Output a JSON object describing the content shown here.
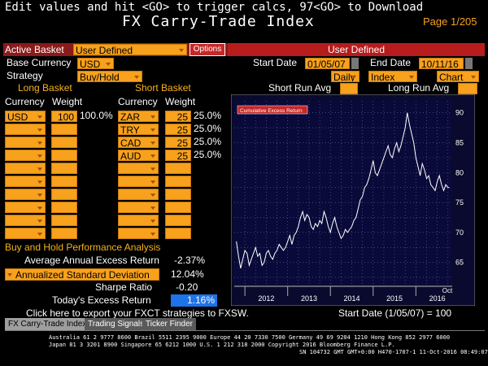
{
  "header": {
    "instruction": "Edit values and hit <GO> to trigger calcs, 97<GO> to Download",
    "title": "FX Carry-Trade Index",
    "page": "Page 1/205"
  },
  "basket_bar": {
    "active_label": "Active Basket",
    "active_value": "User Defined",
    "options_label": "Options",
    "right_label": "User Defined"
  },
  "settings": {
    "base_currency_label": "Base Currency",
    "base_currency_value": "USD",
    "strategy_label": "Strategy",
    "strategy_value": "Buy/Hold",
    "start_date_label": "Start Date",
    "start_date_value": "01/05/07",
    "end_date_label": "End Date",
    "end_date_value": "10/11/16",
    "frequency_value": "Daily",
    "view_value": "Index",
    "display_value": "Chart",
    "short_run_avg_label": "Short Run Avg",
    "long_run_avg_label": "Long Run Avg"
  },
  "long_basket": {
    "title": "Long Basket",
    "currency_header": "Currency",
    "weight_header": "Weight",
    "rows": [
      {
        "currency": "USD",
        "weight": "100",
        "pct": "100.0%"
      }
    ]
  },
  "short_basket": {
    "title": "Short Basket",
    "currency_header": "Currency",
    "weight_header": "Weight",
    "rows": [
      {
        "currency": "ZAR",
        "weight": "25",
        "pct": "25.0%"
      },
      {
        "currency": "TRY",
        "weight": "25",
        "pct": "25.0%"
      },
      {
        "currency": "CAD",
        "weight": "25",
        "pct": "25.0%"
      },
      {
        "currency": "AUD",
        "weight": "25",
        "pct": "25.0%"
      }
    ]
  },
  "performance": {
    "title": "Buy and Hold Performance Analysis",
    "avg_excess_label": "Average Annual Excess Return",
    "avg_excess_value": "-2.37%",
    "std_dev_label": "Annualized Standard Deviation",
    "std_dev_value": "12.04%",
    "sharpe_label": "Sharpe Ratio",
    "sharpe_value": "-0.20",
    "today_label": "Today's Excess Return",
    "today_value": "1.16%",
    "export_link": "Click here to export your FXCT strategies to FXSW.",
    "start_note": "Start Date (1/05/07) = 100"
  },
  "tabs": [
    {
      "label": "FX Carry-Trade Index",
      "active": true
    },
    {
      "label": "Trading Signals",
      "active": false
    },
    {
      "label": "Ticker Finder",
      "active": false
    }
  ],
  "footer": {
    "line1": "Australia 61 2 9777 8600 Brazil 5511 2395 9000 Europe 44 20 7330 7500 Germany 49 69 9204 1210 Hong Kong 852 2977 6000",
    "line2": "Japan 81 3 3201 8900          Singapore 65 6212 1000          U.S. 1 212 318 2000          Copyright 2016 Bloomberg Finance L.P.",
    "line3": "SN 104732 GMT  GMT+0:00 H470-1707-1 11-Oct-2016 08:49:07"
  },
  "colors": {
    "orange": "#f7a11c",
    "yellow": "#f6b21b",
    "dark_red": "#8b1a1a",
    "red_bar": "#b71c1c",
    "chart_bg": "#0a0a3a",
    "today_field": "#1e73e8"
  },
  "chart_data": {
    "type": "line",
    "legend": "Cumulative Excess Return",
    "x_ticks": [
      "2012",
      "2013",
      "2014",
      "2015",
      "2016"
    ],
    "x_extra_label": "Oct",
    "y_ticks": [
      65,
      70,
      75,
      80,
      85,
      90
    ],
    "ylim": [
      61,
      92
    ],
    "xlim": [
      2011.75,
      2016.85
    ],
    "grid": true,
    "series": [
      {
        "x": [
          2011.8,
          2011.85,
          2011.9,
          2011.95,
          2012.0,
          2012.05,
          2012.1,
          2012.15,
          2012.2,
          2012.25,
          2012.3,
          2012.35,
          2012.4,
          2012.45,
          2012.5,
          2012.55,
          2012.6,
          2012.65,
          2012.7,
          2012.75,
          2012.8,
          2012.85,
          2012.9,
          2012.95,
          2013.0,
          2013.05,
          2013.1,
          2013.15,
          2013.2,
          2013.25,
          2013.3,
          2013.35,
          2013.4,
          2013.45,
          2013.5,
          2013.55,
          2013.6,
          2013.65,
          2013.7,
          2013.75,
          2013.8,
          2013.85,
          2013.9,
          2013.95,
          2014.0,
          2014.05,
          2014.1,
          2014.15,
          2014.2,
          2014.25,
          2014.3,
          2014.35,
          2014.4,
          2014.45,
          2014.5,
          2014.55,
          2014.6,
          2014.65,
          2014.7,
          2014.75,
          2014.8,
          2014.85,
          2014.9,
          2014.95,
          2015.0,
          2015.05,
          2015.1,
          2015.15,
          2015.2,
          2015.25,
          2015.3,
          2015.35,
          2015.4,
          2015.45,
          2015.5,
          2015.55,
          2015.6,
          2015.65,
          2015.7,
          2015.75,
          2015.8,
          2015.85,
          2015.9,
          2015.95,
          2016.0,
          2016.05,
          2016.1,
          2016.15,
          2016.2,
          2016.25,
          2016.3,
          2016.35,
          2016.4,
          2016.45,
          2016.5,
          2016.55,
          2016.6,
          2016.65,
          2016.7,
          2016.75,
          2016.78
        ],
        "y": [
          68.5,
          66.0,
          64.0,
          65.5,
          67.0,
          66.5,
          64.5,
          65.5,
          66.5,
          67.5,
          66.0,
          66.5,
          64.5,
          65.0,
          66.5,
          67.0,
          66.0,
          65.5,
          66.5,
          67.0,
          68.0,
          67.5,
          67.0,
          67.5,
          68.5,
          69.5,
          68.0,
          69.5,
          70.0,
          71.0,
          72.5,
          73.5,
          72.0,
          73.0,
          72.5,
          71.0,
          70.5,
          71.5,
          71.0,
          72.0,
          71.5,
          73.5,
          72.5,
          71.0,
          70.0,
          71.5,
          72.5,
          71.0,
          70.0,
          69.0,
          69.5,
          70.5,
          70.0,
          70.5,
          71.0,
          72.0,
          72.5,
          74.0,
          75.5,
          76.0,
          77.5,
          78.0,
          79.0,
          80.5,
          82.0,
          80.0,
          79.5,
          80.5,
          81.5,
          82.5,
          83.5,
          84.5,
          83.0,
          82.5,
          84.0,
          85.0,
          83.5,
          84.5,
          86.0,
          87.5,
          90.0,
          88.0,
          86.5,
          85.0,
          82.5,
          81.0,
          79.5,
          81.5,
          80.5,
          79.0,
          79.5,
          78.0,
          77.5,
          77.0,
          78.5,
          79.5,
          78.0,
          77.0,
          78.0,
          77.5,
          77.5
        ]
      }
    ]
  }
}
